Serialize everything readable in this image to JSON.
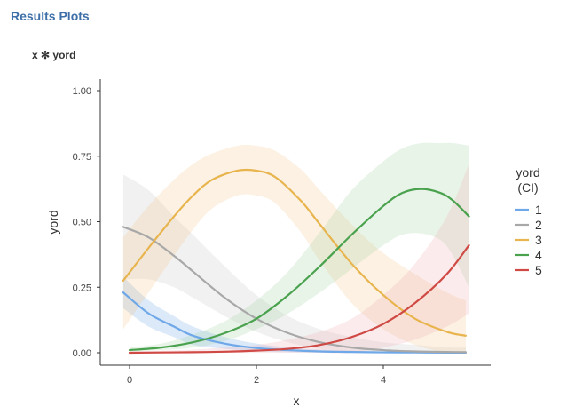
{
  "page": {
    "title": "Results Plots",
    "subtitle": "x ✻ yord"
  },
  "chart_data": {
    "type": "line",
    "title": "",
    "xlabel": "x",
    "ylabel": "yord",
    "xlim": [
      -0.22,
      5.7
    ],
    "ylim": [
      0,
      1
    ],
    "x_ticks": [
      0,
      2,
      4
    ],
    "x_tick_labels": [
      "0",
      "2",
      "4"
    ],
    "y_ticks": [
      0,
      0.25,
      0.5,
      0.75,
      1.0
    ],
    "y_tick_labels": [
      "0.00",
      "0.25",
      "0.50",
      "0.75",
      "1.00"
    ],
    "grid": false,
    "legend": {
      "title_line1": "yord",
      "title_line2": "(CI)",
      "position": "right"
    },
    "series": [
      {
        "name": "1",
        "color": "#6fa8e8",
        "band_color": "#6fa8e8",
        "x": [
          -0.1,
          0.3,
          0.7,
          1.0,
          1.5,
          2.0,
          2.5,
          3.0,
          3.5,
          4.0,
          4.5,
          5.0,
          5.3
        ],
        "y": [
          0.23,
          0.15,
          0.1,
          0.065,
          0.035,
          0.018,
          0.01,
          0.005,
          0.003,
          0.0015,
          0.001,
          0.0005,
          0.0004
        ],
        "lower": [
          0.17,
          0.1,
          0.06,
          0.03,
          0.015,
          0.006,
          0.002,
          0.001,
          0.0,
          0.0,
          0.0,
          0.0,
          0.0
        ],
        "upper": [
          0.29,
          0.2,
          0.14,
          0.1,
          0.06,
          0.035,
          0.02,
          0.012,
          0.008,
          0.005,
          0.004,
          0.003,
          0.003
        ]
      },
      {
        "name": "2",
        "color": "#a8a8a8",
        "band_color": "#c8c8c8",
        "x": [
          -0.1,
          0.3,
          0.7,
          1.0,
          1.5,
          2.0,
          2.5,
          3.0,
          3.5,
          4.0,
          4.5,
          5.0,
          5.3
        ],
        "y": [
          0.48,
          0.44,
          0.37,
          0.31,
          0.21,
          0.13,
          0.075,
          0.04,
          0.02,
          0.01,
          0.005,
          0.003,
          0.002
        ],
        "lower": [
          0.28,
          0.28,
          0.25,
          0.21,
          0.14,
          0.08,
          0.04,
          0.015,
          0.005,
          0.0,
          0.0,
          0.0,
          0.0
        ],
        "upper": [
          0.68,
          0.62,
          0.52,
          0.45,
          0.33,
          0.22,
          0.14,
          0.09,
          0.06,
          0.04,
          0.03,
          0.02,
          0.02
        ]
      },
      {
        "name": "3",
        "color": "#e8b44e",
        "band_color": "#f5c98a",
        "x": [
          -0.1,
          0.3,
          0.7,
          1.0,
          1.3,
          1.7,
          2.0,
          2.3,
          2.7,
          3.0,
          3.5,
          4.0,
          4.5,
          5.0,
          5.3
        ],
        "y": [
          0.275,
          0.4,
          0.52,
          0.6,
          0.66,
          0.695,
          0.695,
          0.67,
          0.58,
          0.49,
          0.34,
          0.22,
          0.13,
          0.08,
          0.065
        ],
        "lower": [
          0.09,
          0.23,
          0.37,
          0.47,
          0.55,
          0.6,
          0.6,
          0.57,
          0.46,
          0.35,
          0.19,
          0.09,
          0.03,
          0.0,
          0.0
        ],
        "upper": [
          0.44,
          0.56,
          0.66,
          0.72,
          0.76,
          0.79,
          0.79,
          0.77,
          0.7,
          0.62,
          0.49,
          0.38,
          0.3,
          0.23,
          0.2
        ]
      },
      {
        "name": "4",
        "color": "#4aa24e",
        "band_color": "#a8d4a8",
        "x": [
          0.0,
          0.5,
          1.0,
          1.5,
          2.0,
          2.5,
          3.0,
          3.5,
          4.0,
          4.3,
          4.6,
          4.9,
          5.1,
          5.35
        ],
        "y": [
          0.01,
          0.02,
          0.04,
          0.075,
          0.13,
          0.22,
          0.33,
          0.45,
          0.56,
          0.61,
          0.625,
          0.61,
          0.58,
          0.52
        ],
        "lower": [
          0.005,
          0.01,
          0.02,
          0.045,
          0.09,
          0.15,
          0.23,
          0.32,
          0.41,
          0.45,
          0.455,
          0.43,
          0.37,
          0.25
        ],
        "upper": [
          0.02,
          0.035,
          0.07,
          0.12,
          0.2,
          0.31,
          0.46,
          0.62,
          0.73,
          0.78,
          0.8,
          0.8,
          0.8,
          0.79
        ]
      },
      {
        "name": "5",
        "color": "#d04a45",
        "band_color": "#f0b0b5",
        "x": [
          0.0,
          0.5,
          1.0,
          1.5,
          2.0,
          2.5,
          3.0,
          3.5,
          4.0,
          4.5,
          5.0,
          5.35
        ],
        "y": [
          0.0,
          0.001,
          0.002,
          0.004,
          0.008,
          0.015,
          0.03,
          0.06,
          0.11,
          0.19,
          0.3,
          0.41
        ],
        "lower": [
          0.0,
          0.0,
          0.0,
          0.0,
          0.0,
          0.0,
          0.0,
          0.0,
          0.02,
          0.05,
          0.1,
          0.15
        ],
        "upper": [
          0.005,
          0.008,
          0.012,
          0.02,
          0.03,
          0.05,
          0.08,
          0.13,
          0.22,
          0.34,
          0.52,
          0.72
        ]
      }
    ]
  }
}
